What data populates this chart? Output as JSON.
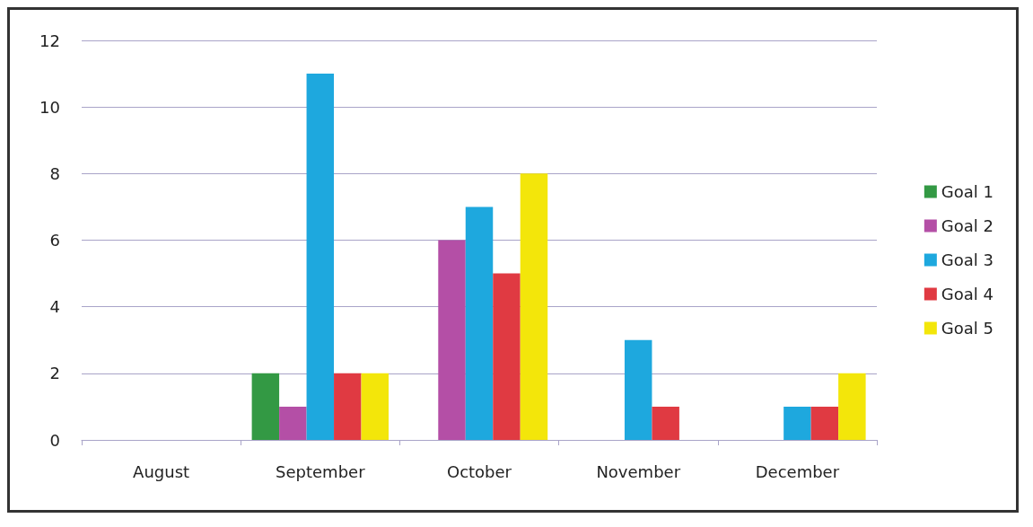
{
  "chart_data": {
    "type": "bar",
    "categories": [
      "August",
      "September",
      "October",
      "November",
      "December"
    ],
    "series": [
      {
        "name": "Goal 1",
        "color": "#339944",
        "values": [
          0,
          2,
          0,
          0,
          0
        ]
      },
      {
        "name": "Goal 2",
        "color": "#b44fa6",
        "values": [
          0,
          1,
          6,
          0,
          0
        ]
      },
      {
        "name": "Goal 3",
        "color": "#1ea8de",
        "values": [
          0,
          11,
          7,
          3,
          1
        ]
      },
      {
        "name": "Goal 4",
        "color": "#e03a42",
        "values": [
          0,
          2,
          5,
          1,
          1
        ]
      },
      {
        "name": "Goal 5",
        "color": "#f3e60a",
        "values": [
          0,
          2,
          8,
          0,
          2
        ]
      }
    ],
    "ylim": [
      0,
      12
    ],
    "yticks": [
      0,
      2,
      4,
      6,
      8,
      10,
      12
    ],
    "grid": "y",
    "legend": "right"
  }
}
